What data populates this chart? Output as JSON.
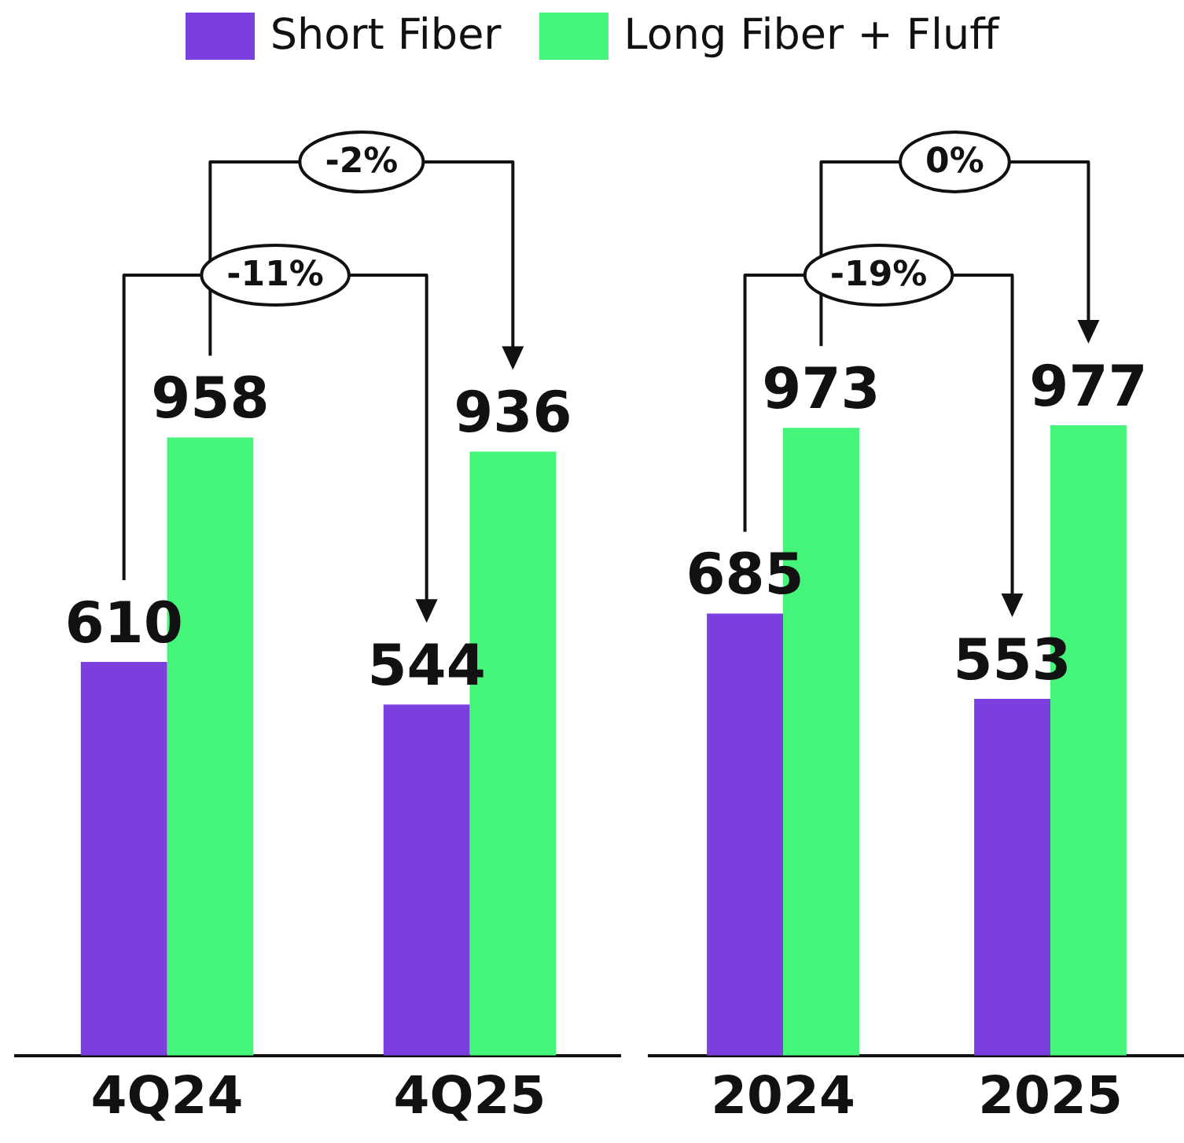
{
  "chart_data": [
    {
      "type": "bar",
      "categories": [
        "4Q24",
        "4Q25"
      ],
      "series": [
        {
          "name": "Short Fiber",
          "color": "#7b3fe0",
          "values": [
            610,
            544
          ]
        },
        {
          "name": "Long Fiber + Fluff",
          "color": "#44f57a",
          "values": [
            958,
            936
          ]
        }
      ],
      "data_labels": true,
      "legend": "top",
      "tick_labels": "x",
      "grid": false,
      "annotations": [
        "-11%",
        "-2%"
      ]
    },
    {
      "type": "bar",
      "categories": [
        "2024",
        "2025"
      ],
      "series": [
        {
          "color": "#7b3fe0",
          "values": [
            685,
            553
          ]
        },
        {
          "color": "#44f57a",
          "values": [
            973,
            977
          ]
        }
      ],
      "data_labels": true,
      "tick_labels": "x",
      "grid": false,
      "annotations": [
        "-19%",
        "0%"
      ]
    }
  ]
}
